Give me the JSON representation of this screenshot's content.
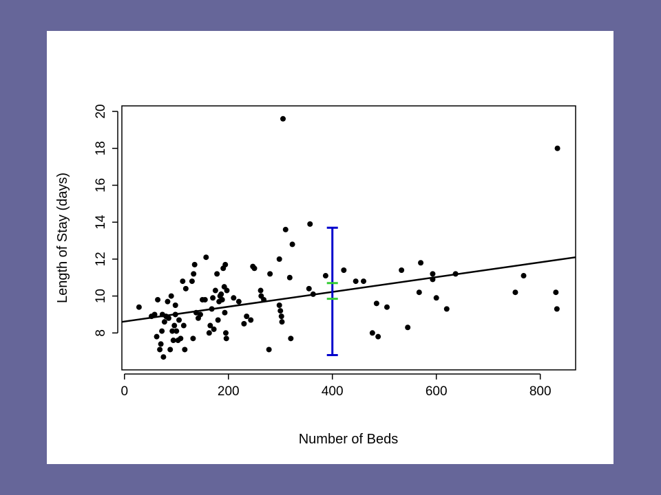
{
  "chart_data": {
    "type": "scatter",
    "xlabel": "Number of Beds",
    "ylabel": "Length of Stay (days)",
    "xlim": [
      -5,
      868
    ],
    "ylim": [
      6.0,
      20.3
    ],
    "x_ticks": [
      "0",
      "200",
      "400",
      "600",
      "800"
    ],
    "x_tick_values": [
      0,
      200,
      400,
      600,
      800
    ],
    "y_ticks": [
      "8",
      "10",
      "12",
      "14",
      "16",
      "18",
      "20"
    ],
    "y_tick_values": [
      8,
      10,
      12,
      14,
      16,
      18,
      20
    ],
    "grid": false,
    "points": [
      {
        "x": 28,
        "y": 9.4
      },
      {
        "x": 52,
        "y": 8.9
      },
      {
        "x": 58,
        "y": 9.0
      },
      {
        "x": 62,
        "y": 7.8
      },
      {
        "x": 64,
        "y": 9.8
      },
      {
        "x": 68,
        "y": 7.1
      },
      {
        "x": 70,
        "y": 7.4
      },
      {
        "x": 72,
        "y": 8.1
      },
      {
        "x": 73,
        "y": 9.0
      },
      {
        "x": 75,
        "y": 6.7
      },
      {
        "x": 77,
        "y": 8.6
      },
      {
        "x": 80,
        "y": 8.9
      },
      {
        "x": 83,
        "y": 9.7
      },
      {
        "x": 85,
        "y": 8.8
      },
      {
        "x": 88,
        "y": 7.1
      },
      {
        "x": 90,
        "y": 10.0
      },
      {
        "x": 92,
        "y": 8.1
      },
      {
        "x": 94,
        "y": 7.6
      },
      {
        "x": 96,
        "y": 8.4
      },
      {
        "x": 98,
        "y": 9.0
      },
      {
        "x": 100,
        "y": 8.1
      },
      {
        "x": 103,
        "y": 7.6
      },
      {
        "x": 105,
        "y": 8.7
      },
      {
        "x": 108,
        "y": 7.7
      },
      {
        "x": 112,
        "y": 10.8
      },
      {
        "x": 114,
        "y": 8.4
      },
      {
        "x": 116,
        "y": 7.1
      },
      {
        "x": 118,
        "y": 10.4
      },
      {
        "x": 98,
        "y": 9.5
      },
      {
        "x": 130,
        "y": 10.8
      },
      {
        "x": 132,
        "y": 7.7
      },
      {
        "x": 133,
        "y": 11.2
      },
      {
        "x": 135,
        "y": 11.7
      },
      {
        "x": 138,
        "y": 9.1
      },
      {
        "x": 142,
        "y": 8.8
      },
      {
        "x": 146,
        "y": 9.0
      },
      {
        "x": 150,
        "y": 9.8
      },
      {
        "x": 155,
        "y": 9.8
      },
      {
        "x": 157,
        "y": 12.1
      },
      {
        "x": 163,
        "y": 8.0
      },
      {
        "x": 165,
        "y": 8.4
      },
      {
        "x": 168,
        "y": 9.3
      },
      {
        "x": 170,
        "y": 9.9
      },
      {
        "x": 172,
        "y": 8.2
      },
      {
        "x": 175,
        "y": 10.3
      },
      {
        "x": 178,
        "y": 11.2
      },
      {
        "x": 180,
        "y": 8.7
      },
      {
        "x": 182,
        "y": 9.7
      },
      {
        "x": 184,
        "y": 10.0
      },
      {
        "x": 186,
        "y": 10.1
      },
      {
        "x": 188,
        "y": 9.8
      },
      {
        "x": 190,
        "y": 11.5
      },
      {
        "x": 192,
        "y": 10.5
      },
      {
        "x": 194,
        "y": 11.7
      },
      {
        "x": 193,
        "y": 9.1
      },
      {
        "x": 195,
        "y": 8.0
      },
      {
        "x": 196,
        "y": 7.7
      },
      {
        "x": 197,
        "y": 10.3
      },
      {
        "x": 210,
        "y": 9.9
      },
      {
        "x": 220,
        "y": 9.7
      },
      {
        "x": 230,
        "y": 8.5
      },
      {
        "x": 235,
        "y": 8.9
      },
      {
        "x": 243,
        "y": 8.7
      },
      {
        "x": 247,
        "y": 11.6
      },
      {
        "x": 250,
        "y": 11.5
      },
      {
        "x": 262,
        "y": 10.3
      },
      {
        "x": 263,
        "y": 10.0
      },
      {
        "x": 268,
        "y": 9.8
      },
      {
        "x": 278,
        "y": 7.1
      },
      {
        "x": 280,
        "y": 11.2
      },
      {
        "x": 298,
        "y": 12.0
      },
      {
        "x": 298,
        "y": 9.5
      },
      {
        "x": 300,
        "y": 9.2
      },
      {
        "x": 302,
        "y": 8.9
      },
      {
        "x": 303,
        "y": 8.6
      },
      {
        "x": 305,
        "y": 19.6
      },
      {
        "x": 310,
        "y": 13.6
      },
      {
        "x": 318,
        "y": 11.0
      },
      {
        "x": 320,
        "y": 7.7
      },
      {
        "x": 323,
        "y": 12.8
      },
      {
        "x": 355,
        "y": 10.4
      },
      {
        "x": 357,
        "y": 13.9
      },
      {
        "x": 363,
        "y": 10.1
      },
      {
        "x": 387,
        "y": 11.1
      },
      {
        "x": 422,
        "y": 11.4
      },
      {
        "x": 445,
        "y": 10.8
      },
      {
        "x": 460,
        "y": 10.8
      },
      {
        "x": 477,
        "y": 8.0
      },
      {
        "x": 485,
        "y": 9.6
      },
      {
        "x": 488,
        "y": 7.8
      },
      {
        "x": 505,
        "y": 9.4
      },
      {
        "x": 533,
        "y": 11.4
      },
      {
        "x": 545,
        "y": 8.3
      },
      {
        "x": 567,
        "y": 10.2
      },
      {
        "x": 570,
        "y": 11.8
      },
      {
        "x": 593,
        "y": 11.2
      },
      {
        "x": 593,
        "y": 10.9
      },
      {
        "x": 600,
        "y": 9.9
      },
      {
        "x": 620,
        "y": 9.3
      },
      {
        "x": 637,
        "y": 11.2
      },
      {
        "x": 752,
        "y": 10.2
      },
      {
        "x": 768,
        "y": 11.1
      },
      {
        "x": 830,
        "y": 10.2
      },
      {
        "x": 832,
        "y": 9.3
      },
      {
        "x": 833,
        "y": 18.0
      }
    ],
    "regression_line": {
      "x1": -5,
      "y1": 8.6,
      "x2": 868,
      "y2": 12.1,
      "color": "#000000"
    },
    "prediction_interval": {
      "x": 400,
      "lower": 6.8,
      "upper": 13.7,
      "color": "#0000cc"
    },
    "confidence_interval": {
      "x": 400,
      "lower": 9.85,
      "upper": 10.7,
      "color": "#33cc33"
    }
  },
  "colors": {
    "background": "#666699",
    "panel": "#ffffff",
    "points": "#000000"
  }
}
